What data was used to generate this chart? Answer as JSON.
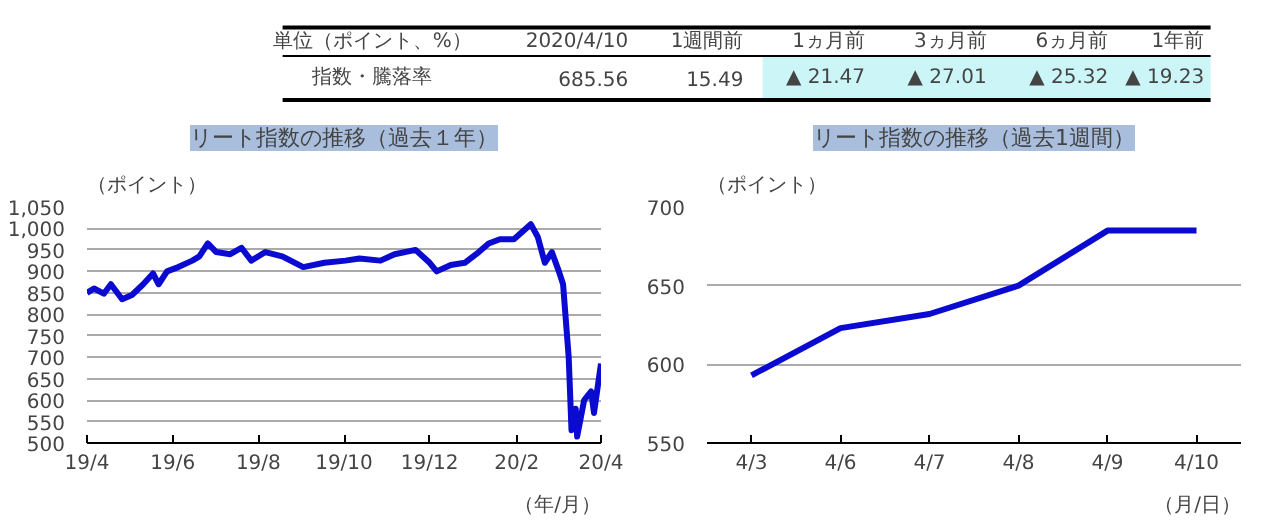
{
  "chart_data": [
    {
      "type": "other",
      "annotations": [
        "単位（ポイント、%）",
        "2020/4/10",
        "1週間前",
        "1ヵ月前",
        "3ヵ月前",
        "6ヵ月前",
        "1年前",
        "指数・騰落率",
        "685.56",
        "15.49",
        "▲ 21.47",
        "▲ 27.01",
        "▲ 25.32",
        "▲ 19.23"
      ]
    },
    {
      "type": "line",
      "title": "リート指数の推移（過去１年）",
      "ylabel": "（ポイント）",
      "xlabel": "（年/月）",
      "grid": "y",
      "ylim": [
        500,
        1050
      ],
      "yticks": [
        500,
        550,
        600,
        650,
        700,
        750,
        800,
        850,
        900,
        950,
        {
          "value": 1000,
          "label": "1,000"
        },
        {
          "value": 1050,
          "label": "1,050"
        }
      ],
      "xlim": [
        "2019-04-10",
        "2020-04-10"
      ],
      "xticks": [
        {
          "value": "2019-04-10",
          "label": "19/4"
        },
        {
          "value": "2019-06-10",
          "label": "19/6"
        },
        {
          "value": "2019-08-10",
          "label": "19/8"
        },
        {
          "value": "2019-10-10",
          "label": "19/10"
        },
        {
          "value": "2019-12-10",
          "label": "19/12"
        },
        {
          "value": "2020-02-10",
          "label": "20/2"
        },
        {
          "value": "2020-04-10",
          "label": "20/4"
        }
      ],
      "x": [
        "2019-04-10",
        "2019-04-15",
        "2019-04-22",
        "2019-04-27",
        "2019-05-05",
        "2019-05-12",
        "2019-05-20",
        "2019-05-27",
        "2019-05-31",
        "2019-06-06",
        "2019-06-14",
        "2019-06-24",
        "2019-06-29",
        "2019-07-05",
        "2019-07-11",
        "2019-07-21",
        "2019-07-29",
        "2019-08-05",
        "2019-08-15",
        "2019-08-27",
        "2019-09-11",
        "2019-09-26",
        "2019-10-11",
        "2019-10-21",
        "2019-11-05",
        "2019-11-15",
        "2019-11-30",
        "2019-12-10",
        "2019-12-15",
        "2019-12-25",
        "2020-01-04",
        "2020-01-14",
        "2020-01-21",
        "2020-01-29",
        "2020-02-08",
        "2020-02-20",
        "2020-02-25",
        "2020-03-01",
        "2020-03-06",
        "2020-03-11",
        "2020-03-14",
        "2020-03-18",
        "2020-03-20",
        "2020-03-23",
        "2020-03-24",
        "2020-03-29",
        "2020-04-03",
        "2020-04-05",
        "2020-04-10"
      ],
      "series": [
        {
          "color": "#0a0ad0",
          "values": [
            850,
            860,
            848,
            870,
            835,
            845,
            870,
            895,
            870,
            900,
            910,
            925,
            935,
            965,
            945,
            940,
            955,
            925,
            945,
            935,
            910,
            920,
            925,
            930,
            925,
            940,
            950,
            920,
            900,
            915,
            920,
            945,
            965,
            975,
            975,
            1010,
            980,
            920,
            945,
            900,
            870,
            700,
            530,
            580,
            515,
            600,
            620,
            570,
            685
          ]
        }
      ]
    },
    {
      "type": "line",
      "title": "リート指数の推移（過去1週間）",
      "ylabel": "（ポイント）",
      "xlabel": "（月/日）",
      "grid": "y",
      "ylim": [
        550,
        700
      ],
      "yticks": [
        550,
        600,
        650,
        700
      ],
      "categories": [
        "4/3",
        "4/6",
        "4/7",
        "4/8",
        "4/9",
        "4/10"
      ],
      "series": [
        {
          "color": "#0a0ad0",
          "values": [
            593,
            623,
            632,
            650,
            685,
            685
          ]
        }
      ]
    }
  ]
}
